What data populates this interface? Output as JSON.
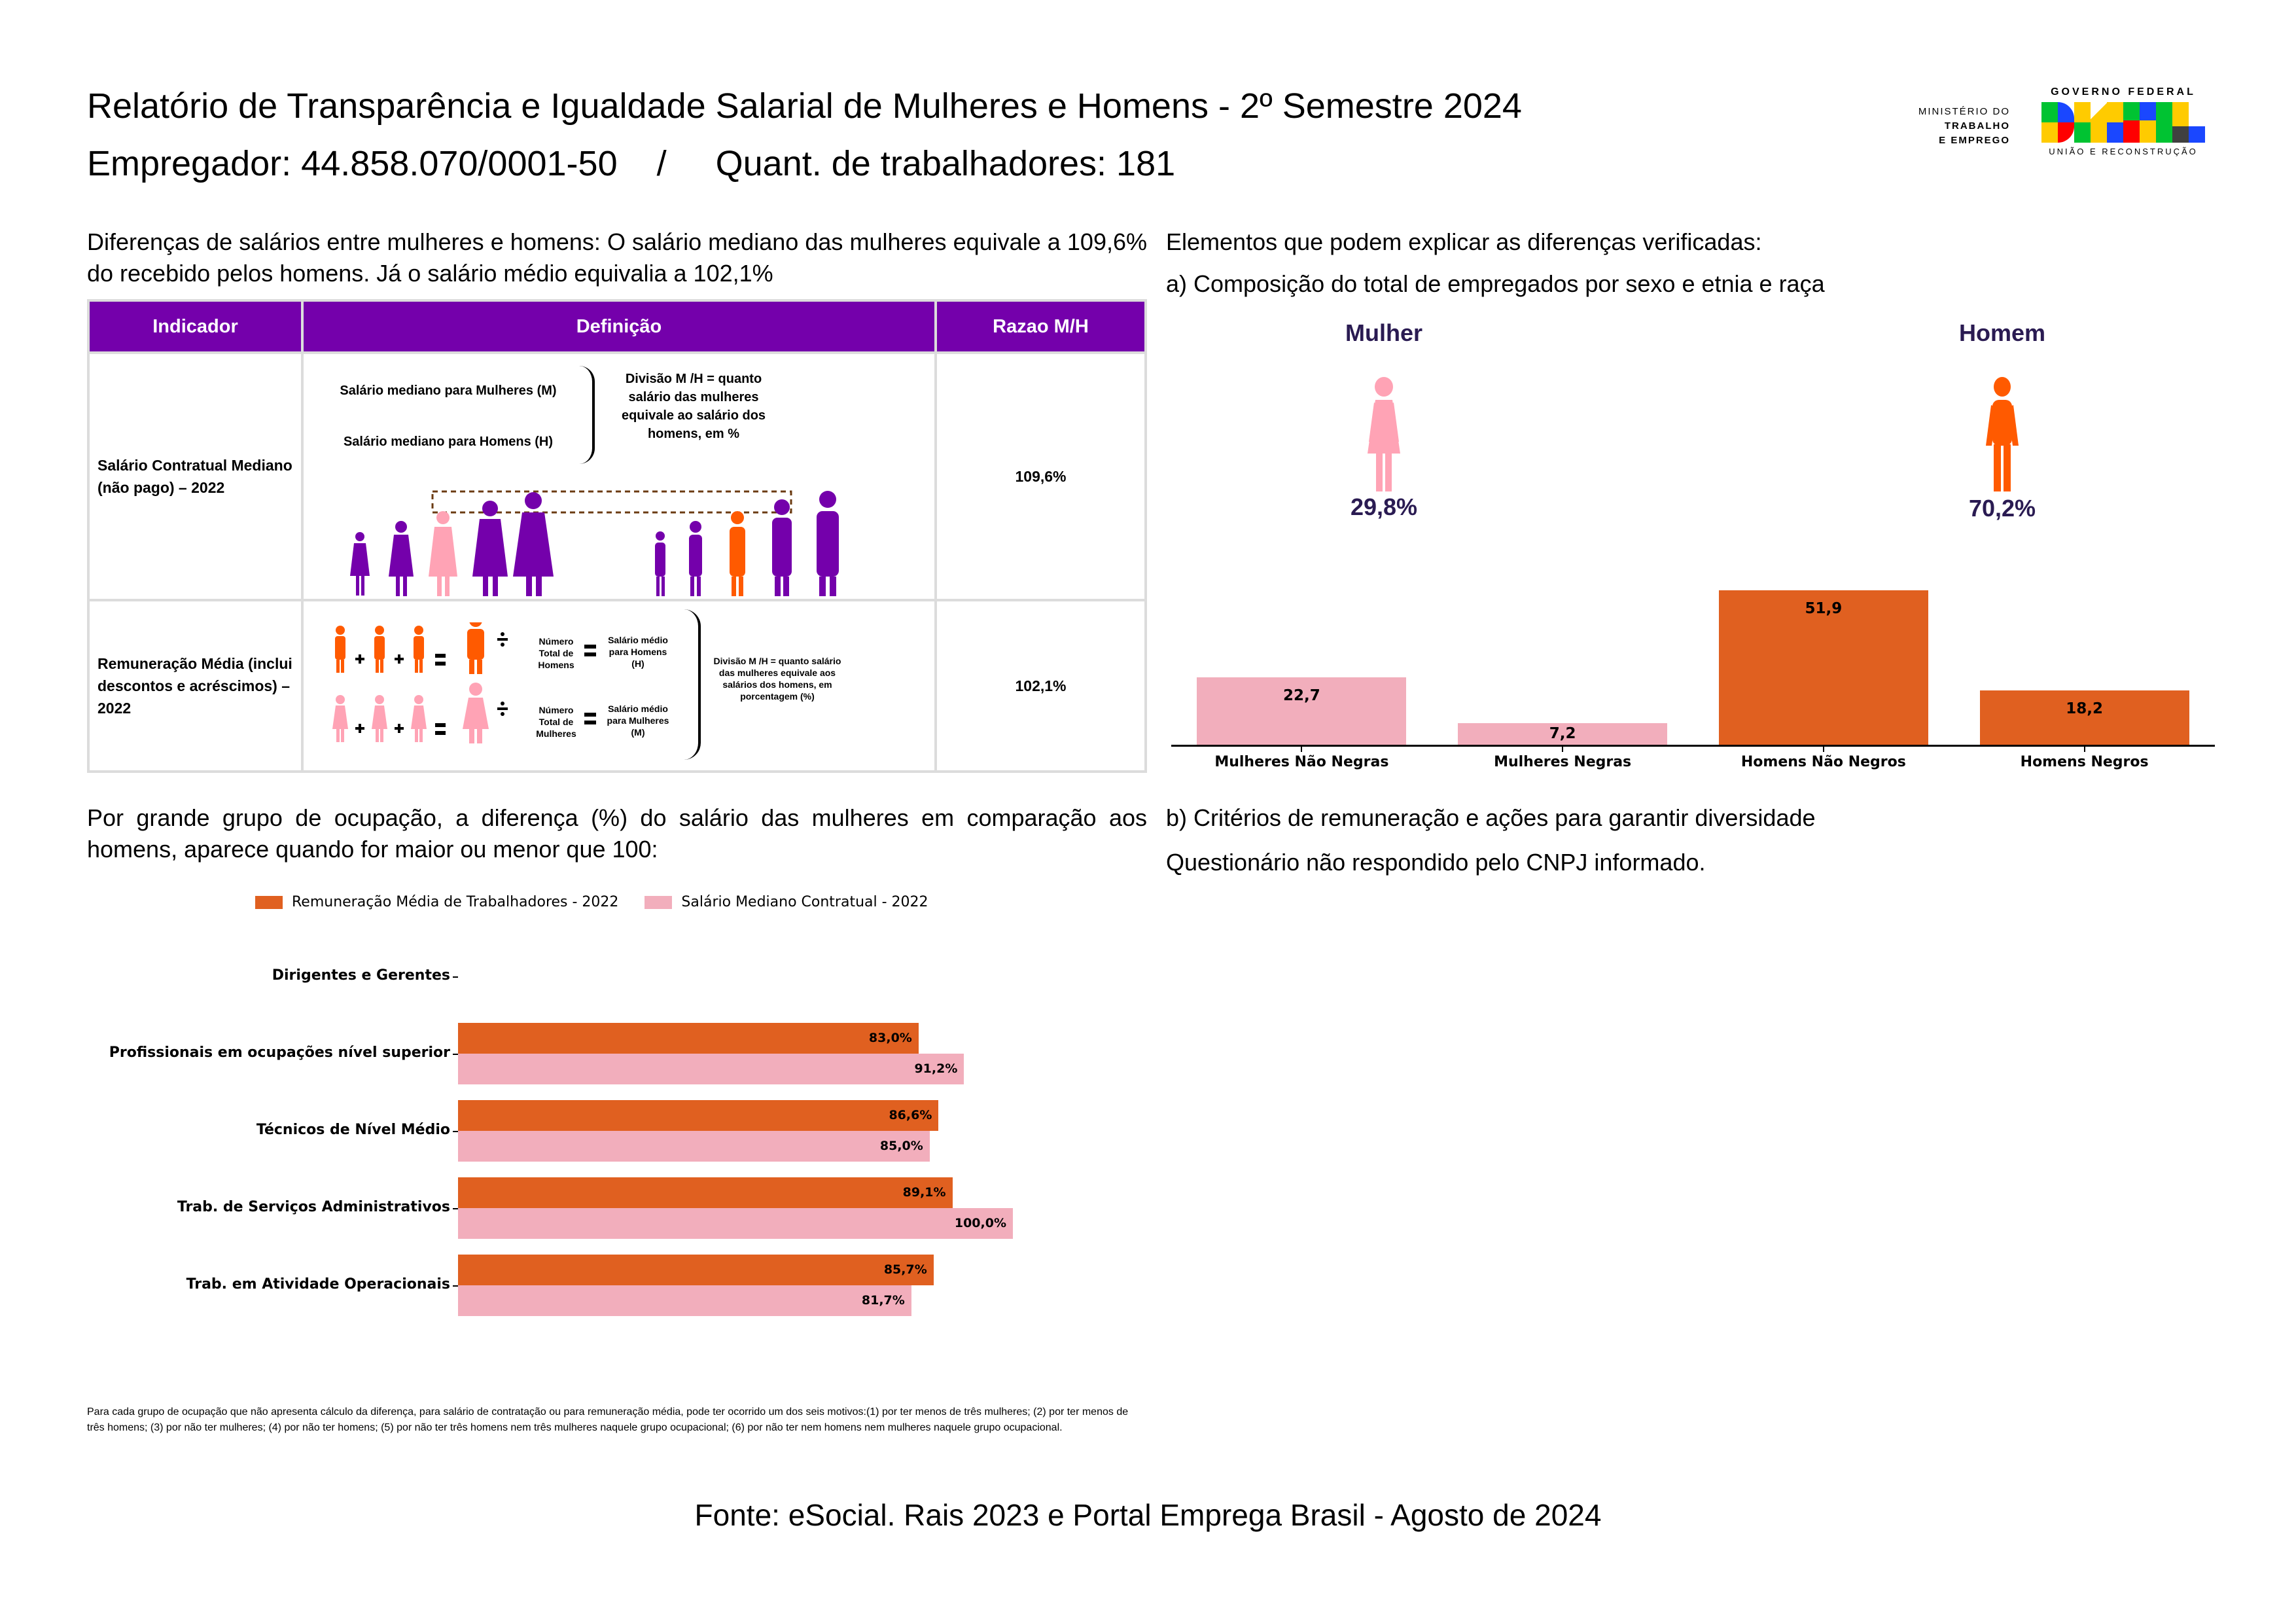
{
  "header": {
    "title": "Relatório de Transparência e Igualdade Salarial de Mulheres e Homens - 2º Semestre 2024",
    "employer_line": "Empregador: 44.858.070/0001-50    /     Quant. de trabalhadores: 181"
  },
  "logos": {
    "ministry": [
      "MINISTÉRIO DO",
      "TRABALHO",
      "E EMPREGO"
    ],
    "gov_top": "GOVERNO FEDERAL",
    "gov_bottom": "UNIÃO E RECONSTRUÇÃO",
    "brasil_colors": [
      "#00c332",
      "#1a47ff",
      "#ffcb00",
      "#ff0000",
      "#00c332",
      "#1a47ff",
      "#ffcb00",
      "#404040"
    ]
  },
  "left": {
    "intro": "Diferenças de salários entre mulheres e homens: O salário mediano das mulheres equivale a 109,6% do recebido pelos homens. Já o salário médio equivalia a 102,1%",
    "table": {
      "headers": [
        "Indicador",
        "Definição",
        "Razao M/H"
      ],
      "rows": [
        {
          "indicator": "Salário Contratual Mediano (não pago) – 2022",
          "def_line1": "Salário mediano para Mulheres (M)",
          "def_line2": "Salário mediano para Homens (H)",
          "def_result": "Divisão M /H = quanto salário das mulheres equivale ao salário dos homens, em %",
          "ratio": "109,6%"
        },
        {
          "indicator": "Remuneração Média (inclui descontos e acréscimos) – 2022",
          "men_count": "Número Total de Homens",
          "men_avg": "Salário médio para Homens (H)",
          "women_count": "Número Total de Mulheres",
          "women_avg": "Salário médio para Mulheres (M)",
          "def_result": "Divisão M /H = quanto salário das mulheres equivale aos salários dos homens, em porcentagem (%)",
          "ratio": "102,1%"
        }
      ]
    },
    "occupation_intro": "Por grande grupo de ocupação, a diferença (%) do salário das mulheres em comparação aos homens, aparece quando for maior ou menor que 100:",
    "note": "Para cada grupo de ocupação que não apresenta cálculo da diferença, para salário de contratação ou para remuneração média, pode ter ocorrido um dos seis motivos:(1) por ter menos de três mulheres; (2) por ter menos de três homens; (3) por não ter mulheres; (4) por não ter homens; (5) por não ter três homens nem três mulheres naquele grupo ocupacional; (6) por não ter nem homens nem mulheres naquele grupo ocupacional."
  },
  "right": {
    "heading": "Elementos que podem explicar as diferenças verificadas:",
    "section_a": "a) Composição do total de empregados por sexo e etnia e raça",
    "female": {
      "label": "Mulher",
      "pct": "29,8%"
    },
    "male": {
      "label": "Homem",
      "pct": "70,2%"
    },
    "section_b": "b) Critérios de remuneração e ações para garantir diversidade",
    "questionnaire": "Questionário não respondido pelo CNPJ informado."
  },
  "colors": {
    "purple": "#7400ab",
    "orange": "#e06020",
    "pink": "#f2aebc",
    "icon_orange": "#ff5a00",
    "icon_pink": "#ffa3b5",
    "navy": "#2a1b52"
  },
  "chart_data": [
    {
      "type": "bar",
      "title": "",
      "categories": [
        "Mulheres Não Negras",
        "Mulheres Negras",
        "Homens Não Negros",
        "Homens Negros"
      ],
      "values": [
        22.7,
        7.2,
        51.9,
        18.2
      ],
      "value_labels": [
        "22,7",
        "7,2",
        "51,9",
        "18,2"
      ],
      "bar_colors": [
        "#f2aebc",
        "#f2aebc",
        "#e06020",
        "#e06020"
      ],
      "xlabel": "",
      "ylabel": "",
      "ylim": [
        0,
        52
      ],
      "grid": false
    },
    {
      "type": "bar",
      "orientation": "horizontal",
      "title": "",
      "categories": [
        "Dirigentes e Gerentes",
        "Profissionais em ocupações nível superior",
        "Técnicos de Nível Médio",
        "Trab. de Serviços Administrativos",
        "Trab. em Atividade Operacionais"
      ],
      "series": [
        {
          "name": "Remuneração Média de Trabalhadores - 2022",
          "color": "#e06020",
          "values": [
            null,
            83.0,
            86.6,
            89.1,
            85.7
          ],
          "labels": [
            "",
            "83,0%",
            "86,6%",
            "89,1%",
            "85,7%"
          ]
        },
        {
          "name": "Salário Mediano Contratual - 2022",
          "color": "#f2aebc",
          "values": [
            null,
            91.2,
            85.0,
            100.0,
            81.7
          ],
          "labels": [
            "",
            "91,2%",
            "85,0%",
            "100,0%",
            "81,7%"
          ]
        }
      ],
      "xlim": [
        0,
        100
      ],
      "legend": "top",
      "grid": false
    }
  ],
  "footer": {
    "source": "Fonte: eSocial. Rais 2023 e Portal Emprega Brasil - Agosto de 2024"
  }
}
